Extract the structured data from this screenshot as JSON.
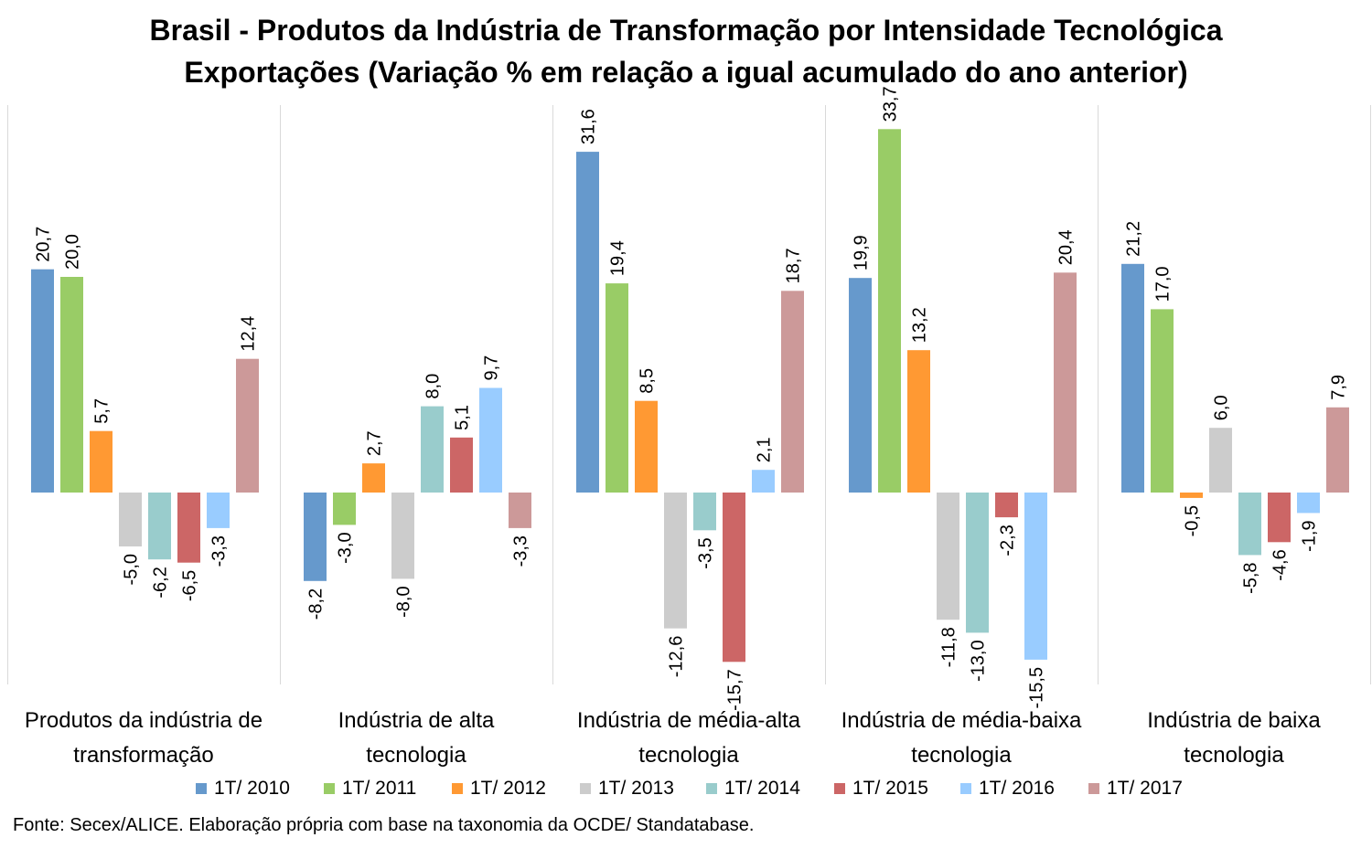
{
  "title": "Brasil - Produtos da Indústria de Transformação por Intensidade Tecnológica",
  "subtitle": "Exportações (Variação % em relação a igual acumulado do ano anterior)",
  "source": "Fonte: Secex/ALICE. Elaboração própria com base na taxonomia da OCDE/ Standatabase.",
  "chart_data": {
    "type": "bar",
    "title": "Brasil - Produtos da Indústria de Transformação por Intensidade Tecnológica",
    "subtitle": "Exportações (Variação % em relação a igual acumulado do ano anterior)",
    "categories": [
      "Produtos da indústria de transformação",
      "Indústria de alta tecnologia",
      "Indústria de média-alta tecnologia",
      "Indústria de média-baixa tecnologia",
      "Indústria de baixa tecnologia"
    ],
    "category_lines": [
      [
        "Produtos da indústria de",
        "transformação"
      ],
      [
        "Indústria de alta",
        "tecnologia"
      ],
      [
        "Indústria de média-alta",
        "tecnologia"
      ],
      [
        "Indústria de média-baixa",
        "tecnologia"
      ],
      [
        "Indústria de baixa",
        "tecnologia"
      ]
    ],
    "series": [
      {
        "name": "1T/ 2010",
        "color": "#6699cc",
        "values": [
          20.7,
          -8.2,
          31.6,
          19.9,
          21.2
        ],
        "labels": [
          "20,7",
          "-8,2",
          "31,6",
          "19,9",
          "21,2"
        ]
      },
      {
        "name": "1T/ 2011",
        "color": "#99cc66",
        "values": [
          20.0,
          -3.0,
          19.4,
          33.7,
          17.0
        ],
        "labels": [
          "20,0",
          "-3,0",
          "19,4",
          "33,7",
          "17,0"
        ]
      },
      {
        "name": "1T/ 2012",
        "color": "#ff9933",
        "values": [
          5.7,
          2.7,
          8.5,
          13.2,
          -0.5
        ],
        "labels": [
          "5,7",
          "2,7",
          "8,5",
          "13,2",
          "-0,5"
        ]
      },
      {
        "name": "1T/ 2013",
        "color": "#cccccc",
        "values": [
          -5.0,
          -8.0,
          -12.6,
          -11.8,
          6.0
        ],
        "labels": [
          "-5,0",
          "-8,0",
          "-12,6",
          "-11,8",
          "6,0"
        ]
      },
      {
        "name": "1T/ 2014",
        "color": "#99cccc",
        "values": [
          -6.2,
          8.0,
          -3.5,
          -13.0,
          -5.8
        ],
        "labels": [
          "-6,2",
          "8,0",
          "-3,5",
          "-13,0",
          "-5,8"
        ]
      },
      {
        "name": "1T/ 2015",
        "color": "#cc6666",
        "values": [
          -6.5,
          5.1,
          -15.7,
          -2.3,
          -4.6
        ],
        "labels": [
          "-6,5",
          "5,1",
          "-15,7",
          "-2,3",
          "-4,6"
        ]
      },
      {
        "name": "1T/ 2016",
        "color": "#99ccff",
        "values": [
          -3.3,
          9.7,
          2.1,
          -15.5,
          -1.9
        ],
        "labels": [
          "-3,3",
          "9,7",
          "2,1",
          "-15,5",
          "-1,9"
        ]
      },
      {
        "name": "1T/ 2017",
        "color": "#cc9999",
        "values": [
          12.4,
          -3.3,
          18.7,
          20.4,
          7.9
        ],
        "labels": [
          "12,4",
          "-3,3",
          "18,7",
          "20,4",
          "7,9"
        ]
      }
    ],
    "legend_position": "bottom",
    "grid": false,
    "y_axis_visible": false,
    "data_labels": "rotated"
  }
}
